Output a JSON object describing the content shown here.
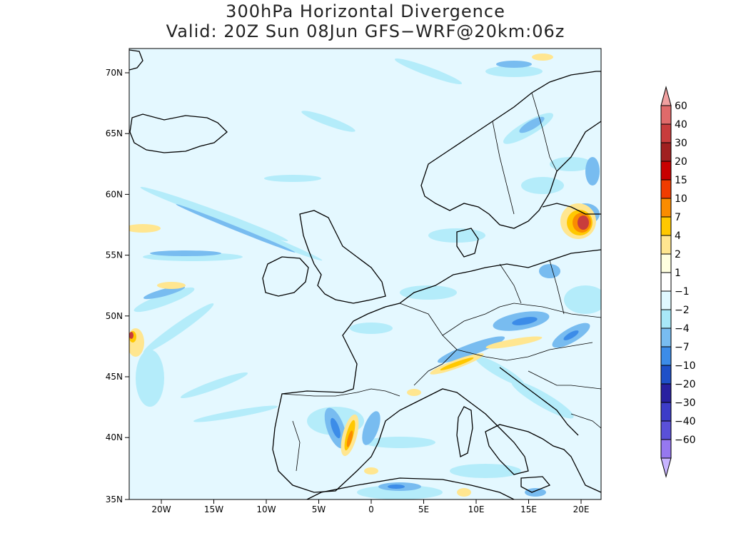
{
  "title": {
    "line1": "300hPa Horizontal Divergence",
    "line2": "Valid: 20Z Sun 08Jun GFS−WRF@20km:06z"
  },
  "axes": {
    "lat_labels": [
      "70N",
      "65N",
      "60N",
      "55N",
      "50N",
      "45N",
      "40N",
      "35N"
    ],
    "lon_labels": [
      "20W",
      "15W",
      "10W",
      "5W",
      "0",
      "5E",
      "10E",
      "15E",
      "20E"
    ]
  },
  "colorbar": {
    "labels": [
      "60",
      "40",
      "30",
      "20",
      "15",
      "10",
      "7",
      "4",
      "2",
      "1",
      "−1",
      "−2",
      "−4",
      "−7",
      "−10",
      "−20",
      "−30",
      "−40",
      "−60"
    ],
    "colors": [
      "#f0a0a0",
      "#e06a6a",
      "#c83c3c",
      "#a02020",
      "#c80000",
      "#f03c00",
      "#fa8c00",
      "#ffc800",
      "#ffe690",
      "#ffffe0",
      "#ffffff",
      "#e0f8ff",
      "#a8e8f8",
      "#78bcf0",
      "#3c8ce8",
      "#1e50c8",
      "#2820a0",
      "#3c3cc8",
      "#5a50d8",
      "#9678f0",
      "#c8b4ff"
    ]
  },
  "field": {
    "background": "#e4f8ff"
  }
}
